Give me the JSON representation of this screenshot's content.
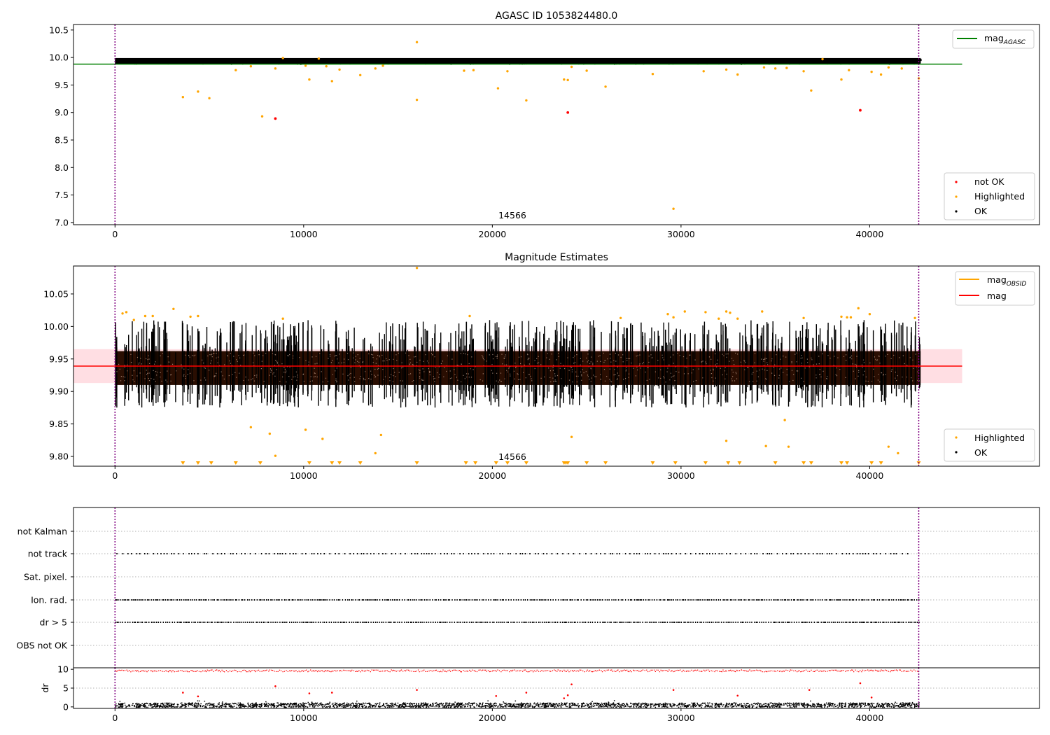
{
  "chart_data": [
    {
      "type": "scatter",
      "title": "AGASC ID 1053824480.0",
      "xlim": [
        -2200,
        49000
      ],
      "ylim": [
        6.96,
        10.6
      ],
      "xticks": [
        "0",
        "10000",
        "20000",
        "30000",
        "40000"
      ],
      "yticks": [
        "7.0",
        "7.5",
        "8.0",
        "8.5",
        "9.0",
        "9.5",
        "10.0",
        "10.5"
      ],
      "annotation": "14566",
      "legend_top": [
        "mag",
        "AGASC"
      ],
      "legend_bottom": [
        "not OK",
        "Highlighted",
        "OK"
      ],
      "mag_agasc_line": {
        "y": 9.88,
        "x0": -2200,
        "x1": 44900
      },
      "ok_band": {
        "x0": 0,
        "x1": 42700,
        "y_center": 9.93,
        "spread": 0.05
      },
      "vertical_lines_x": [
        0,
        42600
      ],
      "highlighted_points": [
        [
          3600,
          9.28
        ],
        [
          4400,
          9.38
        ],
        [
          5000,
          9.26
        ],
        [
          6400,
          9.77
        ],
        [
          7200,
          9.84
        ],
        [
          7800,
          8.93
        ],
        [
          8500,
          9.8
        ],
        [
          8900,
          9.99
        ],
        [
          10100,
          9.85
        ],
        [
          10300,
          9.6
        ],
        [
          10800,
          9.98
        ],
        [
          11200,
          9.84
        ],
        [
          11500,
          9.57
        ],
        [
          11900,
          9.78
        ],
        [
          13000,
          9.68
        ],
        [
          13800,
          9.8
        ],
        [
          14200,
          9.85
        ],
        [
          16000,
          9.23
        ],
        [
          16000,
          10.28
        ],
        [
          18500,
          9.76
        ],
        [
          19000,
          9.77
        ],
        [
          20300,
          9.44
        ],
        [
          20800,
          9.75
        ],
        [
          21800,
          9.22
        ],
        [
          23800,
          9.6
        ],
        [
          24000,
          9.59
        ],
        [
          24200,
          9.83
        ],
        [
          25000,
          9.76
        ],
        [
          26000,
          9.47
        ],
        [
          28500,
          9.7
        ],
        [
          29600,
          7.25
        ],
        [
          31200,
          9.75
        ],
        [
          32400,
          9.78
        ],
        [
          33000,
          9.69
        ],
        [
          34400,
          9.82
        ],
        [
          35000,
          9.8
        ],
        [
          35600,
          9.81
        ],
        [
          36500,
          9.75
        ],
        [
          36900,
          9.4
        ],
        [
          37500,
          9.97
        ],
        [
          38500,
          9.6
        ],
        [
          38900,
          9.77
        ],
        [
          40100,
          9.74
        ],
        [
          40600,
          9.69
        ],
        [
          41000,
          9.82
        ],
        [
          41700,
          9.8
        ],
        [
          42600,
          9.62
        ]
      ],
      "not_ok_points": [
        [
          8500,
          8.89
        ],
        [
          24000,
          9.0
        ],
        [
          39500,
          9.04
        ]
      ]
    },
    {
      "type": "scatter",
      "title": "Magnitude Estimates",
      "xlim": [
        -2200,
        49000
      ],
      "ylim": [
        9.785,
        10.093
      ],
      "xticks": [
        "0",
        "10000",
        "20000",
        "30000",
        "40000"
      ],
      "yticks": [
        "9.80",
        "9.85",
        "9.90",
        "9.95",
        "10.00",
        "10.05"
      ],
      "annotation": "14566",
      "legend_top": [
        "mag",
        "OBSID",
        "mag"
      ],
      "legend_bottom": [
        "Highlighted",
        "OK"
      ],
      "mag_line": {
        "y": 9.939,
        "x0": -2200,
        "x1": 44900
      },
      "mag_band": [
        9.913,
        9.965
      ],
      "ok_band": {
        "x0": 0,
        "x1": 42700,
        "y_center": 9.935,
        "spread": 0.035
      },
      "vertical_lines_x": [
        0,
        42600
      ],
      "highlighted_points": [
        [
          400,
          10.02
        ],
        [
          600,
          10.022
        ],
        [
          1000,
          10.01
        ],
        [
          1600,
          10.016
        ],
        [
          2000,
          10.016
        ],
        [
          3100,
          10.027
        ],
        [
          4000,
          10.015
        ],
        [
          4400,
          10.016
        ],
        [
          7200,
          9.845
        ],
        [
          8200,
          9.835
        ],
        [
          8500,
          9.801
        ],
        [
          8900,
          10.012
        ],
        [
          10100,
          9.841
        ],
        [
          11000,
          9.827
        ],
        [
          13800,
          9.805
        ],
        [
          14100,
          9.833
        ],
        [
          16000,
          10.09
        ],
        [
          18800,
          10.016
        ],
        [
          24200,
          9.83
        ],
        [
          26800,
          10.013
        ],
        [
          29300,
          10.019
        ],
        [
          29600,
          10.014
        ],
        [
          30200,
          10.023
        ],
        [
          31300,
          10.022
        ],
        [
          32000,
          10.012
        ],
        [
          32400,
          10.023
        ],
        [
          32600,
          10.021
        ],
        [
          32400,
          9.824
        ],
        [
          33000,
          10.012
        ],
        [
          34300,
          10.023
        ],
        [
          34500,
          9.816
        ],
        [
          35500,
          9.856
        ],
        [
          35700,
          9.815
        ],
        [
          36500,
          10.013
        ],
        [
          38500,
          10.015
        ],
        [
          38800,
          10.014
        ],
        [
          39000,
          10.014
        ],
        [
          39400,
          10.028
        ],
        [
          40000,
          10.019
        ],
        [
          41000,
          9.815
        ],
        [
          41500,
          9.805
        ],
        [
          42400,
          10.013
        ]
      ],
      "low_markers_x": [
        3600,
        4400,
        5100,
        6400,
        7700,
        10300,
        11500,
        11900,
        13000,
        16000,
        18600,
        19100,
        20200,
        20800,
        21800,
        23800,
        23900,
        24000,
        25000,
        26000,
        28500,
        29700,
        31300,
        32500,
        33100,
        35000,
        36500,
        36900,
        38500,
        38800,
        40100,
        40600,
        42600
      ]
    },
    {
      "type": "scatter",
      "flag_labels": [
        "not Kalman",
        "not track",
        "Sat. pixel.",
        "Ion. rad.",
        "dr > 5",
        "OBS not OK"
      ],
      "xlim": [
        -2200,
        49000
      ],
      "vertical_lines_x": [
        0,
        42600
      ],
      "not_track_x0": 0,
      "not_track_x1": 42000,
      "dense_rows_x": [
        0,
        42600
      ]
    },
    {
      "type": "scatter",
      "ylabel": "dr",
      "xlim": [
        -2200,
        49000
      ],
      "ylim": [
        -0.4,
        10.4
      ],
      "xticks": [
        "0",
        "10000",
        "20000",
        "30000",
        "40000"
      ],
      "yticks": [
        "0",
        "5",
        "10"
      ],
      "vertical_lines_x": [
        0,
        42600
      ],
      "dr_high_value": 9.7,
      "dr_low_spread": 1.2,
      "dr_mid_points": [
        [
          3600,
          3.8
        ],
        [
          4400,
          2.8
        ],
        [
          8500,
          5.5
        ],
        [
          10300,
          3.6
        ],
        [
          11500,
          3.8
        ],
        [
          16000,
          4.5
        ],
        [
          20200,
          2.9
        ],
        [
          21800,
          3.8
        ],
        [
          23800,
          2.3
        ],
        [
          24000,
          3.1
        ],
        [
          24200,
          6.0
        ],
        [
          29600,
          4.5
        ],
        [
          33000,
          3.0
        ],
        [
          36800,
          4.5
        ],
        [
          39500,
          6.3
        ],
        [
          40100,
          2.5
        ]
      ]
    }
  ]
}
